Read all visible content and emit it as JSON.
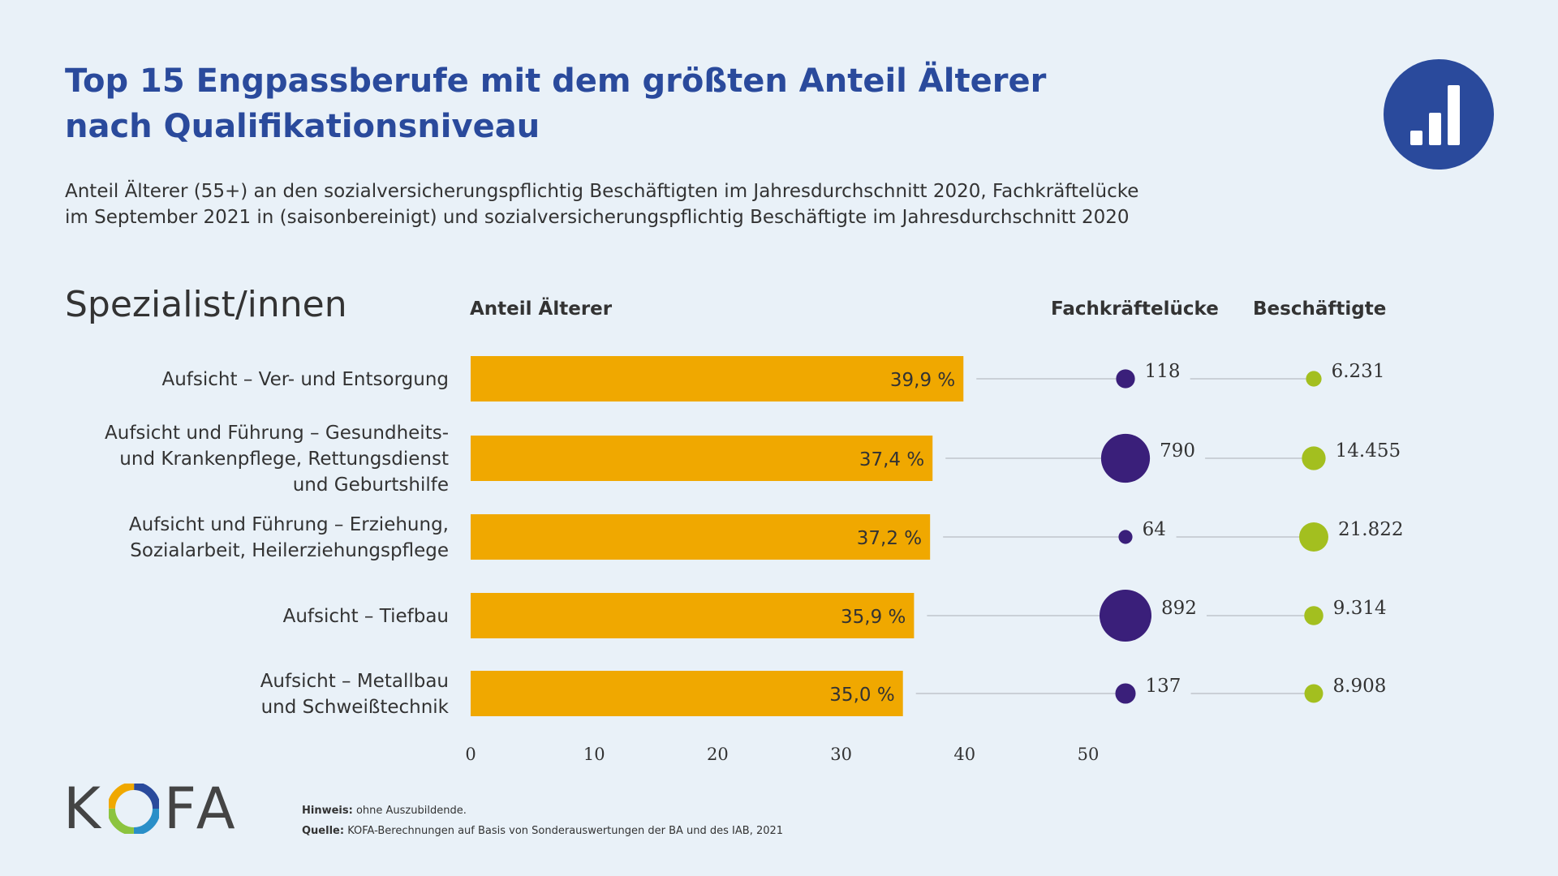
{
  "title": {
    "line1": "Top 15 Engpassberufe mit dem größten Anteil Älterer",
    "line2": "nach Qualifikationsniveau"
  },
  "subtitle": {
    "line1": "Anteil Älterer (55+) an den sozialversicherungspflichtig Beschäftigten im Jahresdurchschnitt 2020, Fachkräftelücke",
    "line2": "im September 2021 in (saisonbereinigt) und sozialversicherungspflichtig Beschäftigte im Jahresdurchschnitt 2020"
  },
  "section_label": "Spezialist/innen",
  "columns": {
    "share": "Anteil Älterer",
    "gap": "Fachkräftelücke",
    "employed": "Beschäftigte"
  },
  "colors": {
    "bar": "#f0a800",
    "gap_dot": "#3a1f7a",
    "employed_dot": "#a3bf1f",
    "title": "#2a4a9c"
  },
  "logo": {
    "text_k": "K",
    "text_fa": "FA",
    "badge_icon": "bar-chart-icon"
  },
  "notes": {
    "hint_label": "Hinweis:",
    "hint_text": "ohne Auszubildende.",
    "source_label": "Quelle:",
    "source_text": "KOFA-Berechnungen auf Basis von Sonderauswertungen der BA und des IAB, 2021"
  },
  "chart_data": {
    "type": "bar",
    "orientation": "horizontal",
    "categories": [
      [
        "Aufsicht – Ver- und Entsorgung"
      ],
      [
        "Aufsicht und Führung – Gesundheits-",
        "und Krankenpflege, Rettungsdienst",
        "und Geburtshilfe"
      ],
      [
        "Aufsicht und Führung – Erziehung,",
        "Sozialarbeit, Heilerziehungspflege"
      ],
      [
        "Aufsicht – Tiefbau"
      ],
      [
        "Aufsicht – Metallbau",
        "und Schweißtechnik"
      ]
    ],
    "series": [
      {
        "name": "Anteil Älterer",
        "values": [
          39.9,
          37.4,
          37.2,
          35.9,
          35.0
        ],
        "labels": [
          "39,9 %",
          "37,4 %",
          "37,2 %",
          "35,9 %",
          "35,0 %"
        ]
      },
      {
        "name": "Fachkräftelücke",
        "values": [
          118,
          790,
          64,
          892,
          137
        ],
        "labels": [
          "118",
          "790",
          "64",
          "892",
          "137"
        ]
      },
      {
        "name": "Beschäftigte",
        "values": [
          6231,
          14455,
          21822,
          9314,
          8908
        ],
        "labels": [
          "6.231",
          "14.455",
          "21.822",
          "9.314",
          "8.908"
        ]
      }
    ],
    "xlim": [
      0,
      50
    ],
    "xticks": [
      "0",
      "10",
      "20",
      "30",
      "40",
      "50"
    ],
    "grid": false
  }
}
